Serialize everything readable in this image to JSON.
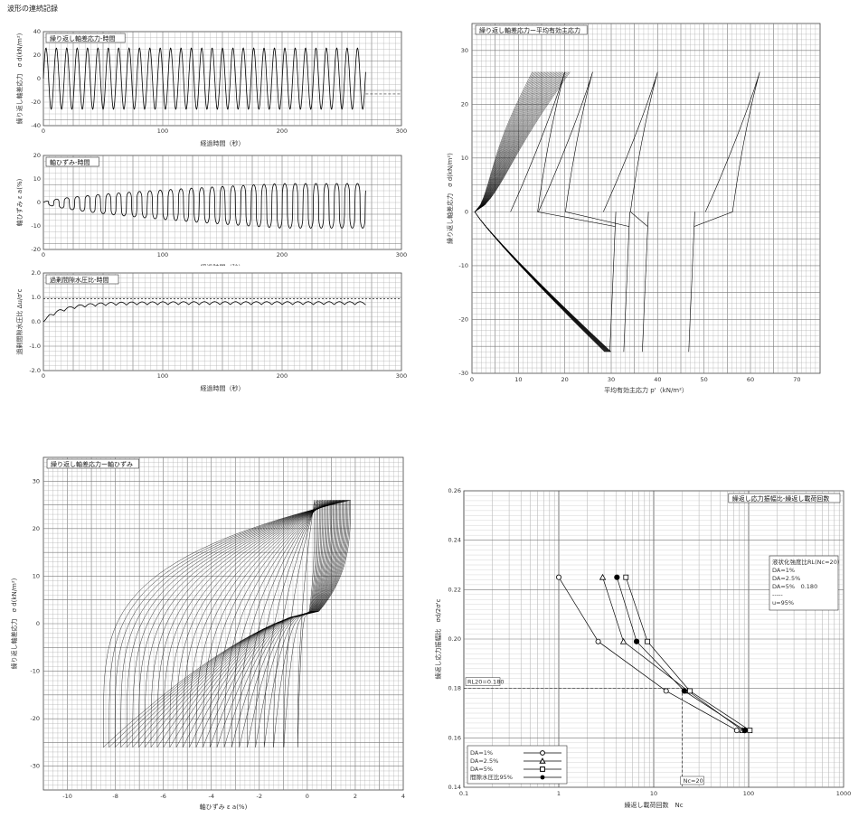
{
  "page_title": "波形の連続記録",
  "chart_data": [
    {
      "id": "p1",
      "type": "line",
      "title": "繰り返し軸差応力-時間",
      "xlabel": "経過時間（秒）",
      "ylabel": "繰り返し軸差応力　σ d(kN/m²)",
      "xlim": [
        0,
        300
      ],
      "ylim": [
        -40,
        40
      ],
      "xticks": [
        "0",
        "100",
        "200",
        "300"
      ],
      "yticks": [
        "40",
        "20",
        "0",
        "-20",
        "-40"
      ],
      "grid": true,
      "series": [
        {
          "period_s": 8.7,
          "amplitude": 26,
          "x_end": 270,
          "trailing_value": -13
        }
      ]
    },
    {
      "id": "p2",
      "type": "line",
      "title": "軸ひずみ-時間",
      "xlabel": "経過時間（秒）",
      "ylabel": "軸ひずみ ε a(%)",
      "xlim": [
        0,
        300
      ],
      "ylim": [
        -20,
        20
      ],
      "xticks": [
        "0",
        "100",
        "200",
        "300"
      ],
      "yticks": [
        "20",
        "10",
        "0",
        "-10",
        "-20"
      ],
      "grid": true,
      "series": [
        {
          "period_s": 8.7,
          "max_amplitude": 9.5,
          "x_end": 270
        }
      ]
    },
    {
      "id": "p3",
      "type": "line",
      "title": "過剰間隙水圧比-時間",
      "xlabel": "経過時間（秒）",
      "ylabel": "過剰間隙水圧比 Δu/σ'c",
      "xlim": [
        0,
        300
      ],
      "ylim": [
        -2.0,
        2.0
      ],
      "xticks": [
        "0",
        "100",
        "200",
        "300"
      ],
      "yticks": [
        "2.0",
        "1.0",
        "0.0",
        "-1.0",
        "-2.0"
      ],
      "reference_line": 0.95,
      "grid": true,
      "series": [
        {
          "period_s": 8.7,
          "final_level": 0.9,
          "x_end": 270
        }
      ]
    },
    {
      "id": "p4",
      "type": "line",
      "title": "繰り返し軸差応力ー平均有効主応力",
      "xlabel": "平均有効主応力 p'（kN/m²）",
      "ylabel": "繰り返し軸差応力　σ d(kN/m²)",
      "xlim": [
        0,
        75
      ],
      "ylim": [
        -30,
        35
      ],
      "xticks": [
        "0",
        "10",
        "20",
        "30",
        "40",
        "50",
        "60",
        "70"
      ],
      "yticks": [
        "30",
        "20",
        "10",
        "0",
        "-10",
        "-20",
        "-30"
      ],
      "grid": true,
      "loops": [
        {
          "peak_p": 62,
          "trough_p": 48
        },
        {
          "peak_p": 40,
          "trough_p": 38
        },
        {
          "peak_p": 26,
          "trough_p": 34
        },
        {
          "peak_p": 20,
          "trough_p": 31
        }
      ],
      "stress_amplitude": 26
    },
    {
      "id": "p5",
      "type": "line",
      "title": "繰り返し軸差応力ー軸ひずみ",
      "xlabel": "軸ひずみ ε a(%)",
      "ylabel": "繰り返し軸差応力　σ d(kN/m²)",
      "xlim": [
        -11,
        4
      ],
      "ylim": [
        -35,
        35
      ],
      "xticks": [
        "-10",
        "-8",
        "-6",
        "-4",
        "-2",
        "0",
        "2",
        "4"
      ],
      "yticks": [
        "30",
        "20",
        "10",
        "0",
        "-10",
        "-20",
        "-30"
      ],
      "grid": true,
      "stress_amplitude": 26,
      "strain_range": [
        -8.5,
        1.8
      ]
    },
    {
      "id": "p6",
      "type": "scatter",
      "title": "繰返し応力振幅比-繰返し載荷回数",
      "xlabel": "繰返し載荷回数　Nc",
      "ylabel": "繰返し応力振幅比　σd/2σ'c",
      "xscale": "log",
      "xlim": [
        0.1,
        1000
      ],
      "ylim": [
        0.14,
        0.26
      ],
      "xticks": [
        "0.1",
        "1",
        "10",
        "100",
        "1000"
      ],
      "yticks": [
        "0.26",
        "0.24",
        "0.22",
        "0.20",
        "0.18",
        "0.16",
        "0.14"
      ],
      "grid": true,
      "rl_label": "RL20=0.180",
      "rl_value": 0.18,
      "nc_label": "Nc=20",
      "nc_value": 20,
      "info_box": [
        "液状化強度比RL(Nc=20)",
        "DA=1%",
        "DA=2.5%",
        "DA=5%　0.180",
        "-----",
        "u=95%"
      ],
      "series": [
        {
          "name": "DA=1%",
          "marker": "circle-open",
          "x": [
            1,
            2.6,
            13.5,
            75
          ],
          "y": [
            0.225,
            0.199,
            0.179,
            0.163
          ]
        },
        {
          "name": "DA=2.5%",
          "marker": "triangle-open",
          "x": [
            2.9,
            4.8,
            23,
            86
          ],
          "y": [
            0.225,
            0.199,
            0.179,
            0.163
          ]
        },
        {
          "name": "DA=5%",
          "marker": "square-open",
          "x": [
            5.1,
            8.6,
            24,
            103
          ],
          "y": [
            0.225,
            0.199,
            0.179,
            0.163
          ]
        },
        {
          "name": "間隙水圧比95%",
          "marker": "circle-filled",
          "x": [
            4.1,
            6.6,
            21,
            91
          ],
          "y": [
            0.225,
            0.199,
            0.179,
            0.163
          ]
        }
      ]
    }
  ]
}
